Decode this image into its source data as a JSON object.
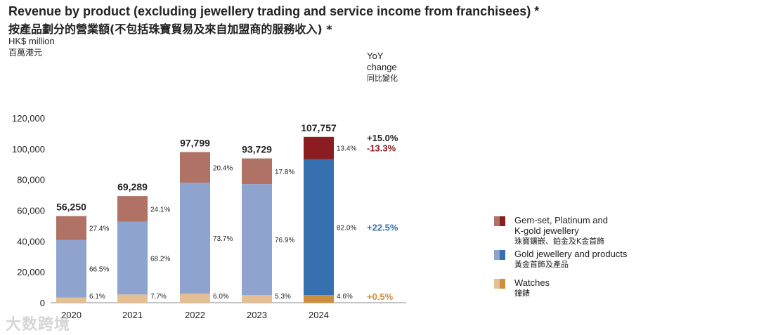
{
  "header": {
    "title_en": "Revenue by product (excluding jewellery trading and service income from franchisees) *",
    "title_zh": "按產品劃分的營業額(不包括珠寶貿易及來自加盟商的服務收入) *",
    "unit_en": "HK$ million",
    "unit_zh": "百萬港元",
    "yoy_label_line1": "YoY",
    "yoy_label_line2": "change",
    "yoy_label_zh": "同比變化"
  },
  "colors": {
    "gem_light": "#b07265",
    "gold_light": "#8fa3cf",
    "watch_light": "#e3bf93",
    "gem_dark": "#8b1c20",
    "gold_dark": "#3770b0",
    "watch_dark": "#cd8f3d",
    "yoy_gem": "#8b1c20",
    "yoy_gold": "#3770b0",
    "yoy_watch": "#cd8f3d"
  },
  "legend": [
    {
      "label_en_line1": "Gem-set, Platinum and",
      "label_en_line2": "K-gold jewellery",
      "label_zh": "珠寶鑲嵌、鉑金及K金首飾",
      "light": "#b07265",
      "dark": "#8b1c20"
    },
    {
      "label_en_line1": "Gold jewellery and products",
      "label_en_line2": "",
      "label_zh": "黃金首飾及產品",
      "light": "#8fa3cf",
      "dark": "#3770b0"
    },
    {
      "label_en_line1": "Watches",
      "label_en_line2": "",
      "label_zh": "鐘錶",
      "light": "#e3bf93",
      "dark": "#cd8f3d"
    }
  ],
  "watermark": "大数跨境",
  "chart_data": {
    "type": "bar",
    "stacked": true,
    "title": "Revenue by product (excluding jewellery trading and service income from franchisees) *",
    "ylabel": "HK$ million",
    "ylim": [
      0,
      120000
    ],
    "yticks": [
      0,
      20000,
      40000,
      60000,
      80000,
      100000,
      120000
    ],
    "ytick_labels": [
      "0",
      "20,000",
      "40,000",
      "60,000",
      "80,000",
      "100,000",
      "120,000"
    ],
    "categories": [
      "2020",
      "2021",
      "2022",
      "2023",
      "2024"
    ],
    "totals": [
      56250,
      69289,
      97799,
      93729,
      107757
    ],
    "total_labels": [
      "56,250",
      "69,289",
      "97,799",
      "93,729",
      "107,757"
    ],
    "series": [
      {
        "name": "Watches",
        "share_labels": [
          "6.1%",
          "7.7%",
          "6.0%",
          "5.3%",
          "4.6%"
        ],
        "shares": [
          6.1,
          7.7,
          6.0,
          5.3,
          4.6
        ],
        "yoy": "+0.5%"
      },
      {
        "name": "Gold jewellery and products",
        "share_labels": [
          "66.5%",
          "68.2%",
          "73.7%",
          "76.9%",
          "82.0%"
        ],
        "shares": [
          66.5,
          68.2,
          73.7,
          76.9,
          82.0
        ],
        "yoy": "+22.5%"
      },
      {
        "name": "Gem-set, Platinum and K-gold jewellery",
        "share_labels": [
          "27.4%",
          "24.1%",
          "20.4%",
          "17.8%",
          "13.4%"
        ],
        "shares": [
          27.4,
          24.1,
          20.4,
          17.8,
          13.4
        ],
        "yoy": "-13.3%"
      }
    ],
    "total_yoy": "+15.0%"
  }
}
